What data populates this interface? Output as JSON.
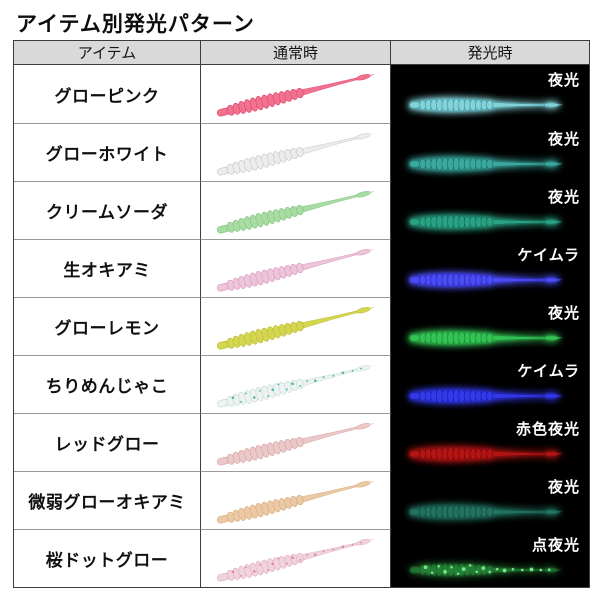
{
  "title": "アイテム別発光パターン",
  "table": {
    "headers": {
      "item": "アイテム",
      "normal": "通常時",
      "glow": "発光時"
    },
    "rows": [
      {
        "item": "グローピンク",
        "glow_label": "夜光",
        "normal": {
          "body": "#f2718e",
          "edge": "#e04e73"
        },
        "glow": {
          "body": "#84d2d8",
          "edge": "#3a9aa4"
        }
      },
      {
        "item": "グローホワイト",
        "glow_label": "夜光",
        "normal": {
          "body": "#ececec",
          "edge": "#cccccc"
        },
        "glow": {
          "body": "#3aa89e",
          "edge": "#1f6f68"
        }
      },
      {
        "item": "クリームソーダ",
        "glow_label": "夜光",
        "normal": {
          "body": "#a9dca3",
          "edge": "#88c687"
        },
        "glow": {
          "body": "#29a283",
          "edge": "#156a56"
        }
      },
      {
        "item": "生オキアミ",
        "glow_label": "ケイムラ",
        "normal": {
          "body": "#edc5db",
          "edge": "#dc9fc3"
        },
        "glow": {
          "body": "#4a4cf2",
          "edge": "#2a28c0"
        }
      },
      {
        "item": "グローレモン",
        "glow_label": "夜光",
        "normal": {
          "body": "#d5d650",
          "edge": "#bcbe38"
        },
        "glow": {
          "body": "#33c254",
          "edge": "#1d8b36"
        }
      },
      {
        "item": "ちりめんじゃこ",
        "glow_label": "ケイムラ",
        "normal": {
          "body": "#eef3f1",
          "edge": "#c8ddd8",
          "speckle": "#48b7ab"
        },
        "glow": {
          "body": "#3338e8",
          "edge": "#1c1fb0"
        }
      },
      {
        "item": "レッドグロー",
        "glow_label": "赤色夜光",
        "normal": {
          "body": "#ebc9c8",
          "edge": "#d8a8ab"
        },
        "glow": {
          "body": "#b41414",
          "edge": "#6d0b0b"
        }
      },
      {
        "item": "微弱グローオキアミ",
        "glow_label": "夜光",
        "normal": {
          "body": "#ecc9a5",
          "edge": "#dab081"
        },
        "glow": {
          "body": "#21735f",
          "edge": "#124a3d"
        }
      },
      {
        "item": "桜ドットグロー",
        "glow_label": "点夜光",
        "normal": {
          "body": "#f1d4db",
          "edge": "#e0b2c1",
          "speckle": "#e083ab"
        },
        "glow": {
          "body": "#2f9e45",
          "edge": "#1a5d29",
          "speckle": "#74e884",
          "body_opacity": 0.35
        }
      }
    ]
  },
  "colors": {
    "header_bg": "#d9d9d9",
    "glow_column_bg": "#000000",
    "border_dark": "#3c3c3c",
    "row_divider": "#9a9a9a",
    "glow_label_color": "#ffffff"
  },
  "chart_data": {
    "type": "table",
    "title": "アイテム別発光パターン",
    "columns": [
      "アイテム",
      "通常時",
      "発光時"
    ],
    "rows": [
      {
        "item": "グローピンク",
        "glow_type": "夜光"
      },
      {
        "item": "グローホワイト",
        "glow_type": "夜光"
      },
      {
        "item": "クリームソーダ",
        "glow_type": "夜光"
      },
      {
        "item": "生オキアミ",
        "glow_type": "ケイムラ"
      },
      {
        "item": "グローレモン",
        "glow_type": "夜光"
      },
      {
        "item": "ちりめんじゃこ",
        "glow_type": "ケイムラ"
      },
      {
        "item": "レッドグロー",
        "glow_type": "赤色夜光"
      },
      {
        "item": "微弱グローオキアミ",
        "glow_type": "夜光"
      },
      {
        "item": "桜ドットグロー",
        "glow_type": "点夜光"
      }
    ]
  }
}
